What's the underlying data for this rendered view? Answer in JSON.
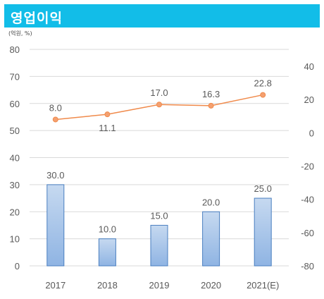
{
  "header": {
    "title": "영업이익",
    "unit": "(억원, %)"
  },
  "colors": {
    "title_bg": "#12bde8",
    "bar_fill_top": "#c6d9f0",
    "bar_fill_bottom": "#8fb4e3",
    "bar_stroke": "#4a7fc0",
    "line": "#f08a4b",
    "marker": "#f4a070",
    "axis_text": "#595959",
    "grid": "#d9d9d9"
  },
  "chart_data": {
    "type": "bar+line",
    "categories": [
      "2017",
      "2018",
      "2019",
      "2020",
      "2021(E)"
    ],
    "series": [
      {
        "type": "bar",
        "axis": "left",
        "values": [
          30.0,
          10.0,
          15.0,
          20.0,
          25.0
        ],
        "labels": [
          "30.0",
          "10.0",
          "15.0",
          "20.0",
          "25.0"
        ]
      },
      {
        "type": "line",
        "axis": "right",
        "values": [
          8.0,
          11.1,
          17.0,
          16.3,
          22.8
        ],
        "labels": [
          "8.0",
          "11.1",
          "17.0",
          "16.3",
          "22.8"
        ],
        "label_position": [
          "above",
          "below",
          "above",
          "above",
          "above"
        ]
      }
    ],
    "left_axis": {
      "ylim": [
        0,
        80
      ],
      "ticks": [
        "0",
        "10",
        "20",
        "30",
        "40",
        "50",
        "60",
        "70",
        "80"
      ]
    },
    "right_axis": {
      "ylim": [
        -80,
        50
      ],
      "ticks": [
        "-80",
        "-60",
        "-40",
        "-20",
        "0",
        "20",
        "40"
      ]
    },
    "grid": true,
    "legend": "none"
  }
}
